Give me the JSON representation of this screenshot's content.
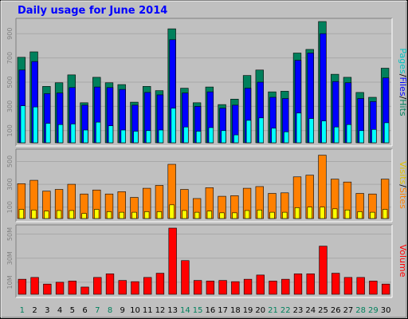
{
  "chart_data": [
    {
      "type": "bar",
      "title": "Daily usage for June 2014",
      "panel": "hits-files-pages",
      "categories": [
        "1",
        "2",
        "3",
        "4",
        "5",
        "6",
        "7",
        "8",
        "9",
        "10",
        "11",
        "12",
        "13",
        "14",
        "15",
        "16",
        "17",
        "18",
        "19",
        "20",
        "21",
        "22",
        "23",
        "24",
        "25",
        "26",
        "27",
        "28",
        "29",
        "30"
      ],
      "weekend_days": [
        "1",
        "7",
        "8",
        "14",
        "15",
        "21",
        "22",
        "28",
        "29"
      ],
      "y_ticks": [
        "100",
        "300",
        "500",
        "700",
        "900"
      ],
      "ylim": [
        0,
        1000
      ],
      "side_label": [
        "Pages",
        "/",
        "Files",
        "/",
        "Hits"
      ],
      "series": [
        {
          "name": "Hits",
          "color": "#00805c",
          "values": [
            705,
            750,
            465,
            495,
            560,
            330,
            540,
            495,
            480,
            335,
            465,
            430,
            940,
            450,
            330,
            460,
            315,
            360,
            555,
            600,
            420,
            425,
            740,
            770,
            1000,
            565,
            540,
            415,
            375,
            615
          ]
        },
        {
          "name": "Files",
          "color": "#0000ff",
          "values": [
            600,
            670,
            405,
            410,
            455,
            310,
            460,
            455,
            440,
            310,
            415,
            395,
            850,
            410,
            300,
            420,
            285,
            310,
            450,
            500,
            375,
            365,
            680,
            740,
            900,
            505,
            495,
            365,
            340,
            535
          ]
        },
        {
          "name": "Pages",
          "color": "#00ffff",
          "values": [
            305,
            295,
            160,
            150,
            155,
            105,
            170,
            140,
            105,
            95,
            100,
            105,
            285,
            130,
            95,
            125,
            100,
            65,
            185,
            205,
            120,
            90,
            245,
            200,
            180,
            130,
            150,
            100,
            110,
            165
          ]
        }
      ]
    },
    {
      "type": "bar",
      "panel": "visits-sites",
      "categories": [
        "1",
        "2",
        "3",
        "4",
        "5",
        "6",
        "7",
        "8",
        "9",
        "10",
        "11",
        "12",
        "13",
        "14",
        "15",
        "16",
        "17",
        "18",
        "19",
        "20",
        "21",
        "22",
        "23",
        "24",
        "25",
        "26",
        "27",
        "28",
        "29",
        "30"
      ],
      "y_ticks": [
        "100",
        "300",
        "500"
      ],
      "ylim": [
        0,
        580
      ],
      "side_label": [
        "Visits",
        "/",
        "Sites"
      ],
      "series": [
        {
          "name": "Visits",
          "color": "#ff8000",
          "values": [
            305,
            335,
            240,
            255,
            300,
            215,
            250,
            215,
            235,
            185,
            265,
            290,
            475,
            255,
            175,
            270,
            195,
            200,
            265,
            280,
            220,
            225,
            365,
            380,
            555,
            345,
            320,
            220,
            215,
            345
          ]
        },
        {
          "name": "Sites",
          "color": "#ffff00",
          "values": [
            80,
            75,
            65,
            70,
            70,
            45,
            80,
            60,
            55,
            55,
            60,
            60,
            120,
            70,
            55,
            65,
            50,
            50,
            70,
            75,
            55,
            55,
            95,
            100,
            100,
            85,
            75,
            60,
            55,
            80
          ]
        }
      ]
    },
    {
      "type": "bar",
      "panel": "volume",
      "categories": [
        "1",
        "2",
        "3",
        "4",
        "5",
        "6",
        "7",
        "8",
        "9",
        "10",
        "11",
        "12",
        "13",
        "14",
        "15",
        "16",
        "17",
        "18",
        "19",
        "20",
        "21",
        "22",
        "23",
        "24",
        "25",
        "26",
        "27",
        "28",
        "29",
        "30"
      ],
      "y_ticks": [
        "10M",
        "30M",
        "50M"
      ],
      "ylim": [
        0,
        55
      ],
      "side_label": [
        "Volume"
      ],
      "series": [
        {
          "name": "Volume",
          "color": "#ff0000",
          "values": [
            12.5,
            14,
            8.5,
            10,
            11,
            6,
            14,
            17,
            11.5,
            10.5,
            14,
            17.5,
            55,
            28,
            11.5,
            11,
            11.5,
            10.5,
            12.5,
            16,
            11,
            12.5,
            17,
            17,
            40,
            17.5,
            14,
            14,
            11,
            8.5
          ]
        }
      ]
    }
  ]
}
